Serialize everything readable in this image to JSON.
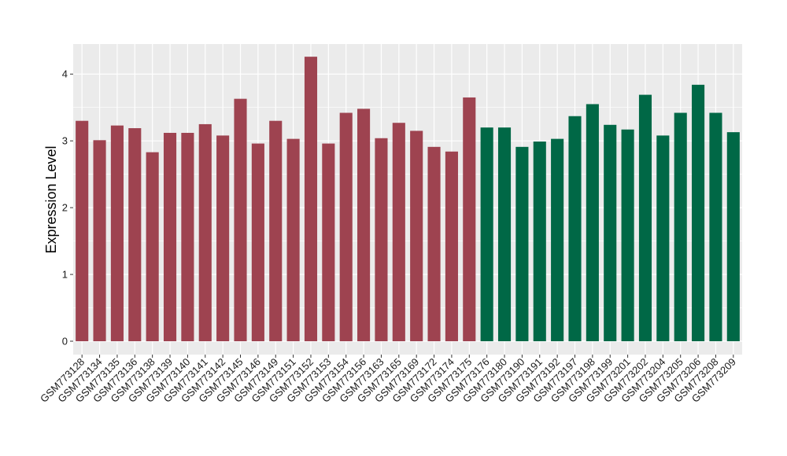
{
  "chart_data": {
    "type": "bar",
    "ylabel": "Expression Level",
    "xlabel": "",
    "ylim": [
      -0.2,
      4.45
    ],
    "yticks": [
      0,
      1,
      2,
      3,
      4
    ],
    "grid": true,
    "panel_background": "#EBEBEB",
    "grid_color": "#FFFFFF",
    "categories": [
      "GSM773128",
      "GSM773134",
      "GSM773135",
      "GSM773136",
      "GSM773138",
      "GSM773139",
      "GSM773140",
      "GSM773141",
      "GSM773142",
      "GSM773145",
      "GSM773146",
      "GSM773149",
      "GSM773151",
      "GSM773152",
      "GSM773153",
      "GSM773154",
      "GSM773156",
      "GSM773163",
      "GSM773165",
      "GSM773169",
      "GSM773172",
      "GSM773174",
      "GSM773175",
      "GSM773176",
      "GSM773180",
      "GSM773190",
      "GSM773191",
      "GSM773192",
      "GSM773197",
      "GSM773198",
      "GSM773199",
      "GSM773201",
      "GSM773202",
      "GSM773204",
      "GSM773205",
      "GSM773206",
      "GSM773208",
      "GSM773209"
    ],
    "values": [
      3.3,
      3.01,
      3.23,
      3.19,
      2.83,
      3.12,
      3.12,
      3.25,
      3.08,
      3.63,
      2.96,
      3.3,
      3.03,
      4.26,
      2.96,
      3.42,
      3.48,
      3.04,
      3.27,
      3.15,
      2.91,
      2.84,
      3.65,
      3.2,
      3.2,
      2.91,
      2.99,
      3.03,
      3.37,
      3.55,
      3.24,
      3.17,
      3.69,
      3.08,
      3.42,
      3.84,
      3.42,
      3.13
    ],
    "colors": [
      "#9E4350",
      "#9E4350",
      "#9E4350",
      "#9E4350",
      "#9E4350",
      "#9E4350",
      "#9E4350",
      "#9E4350",
      "#9E4350",
      "#9E4350",
      "#9E4350",
      "#9E4350",
      "#9E4350",
      "#9E4350",
      "#9E4350",
      "#9E4350",
      "#9E4350",
      "#9E4350",
      "#9E4350",
      "#9E4350",
      "#9E4350",
      "#9E4350",
      "#9E4350",
      "#006846",
      "#006846",
      "#006846",
      "#006846",
      "#006846",
      "#006846",
      "#006846",
      "#006846",
      "#006846",
      "#006846",
      "#006846",
      "#006846",
      "#006846",
      "#006846",
      "#006846"
    ]
  }
}
